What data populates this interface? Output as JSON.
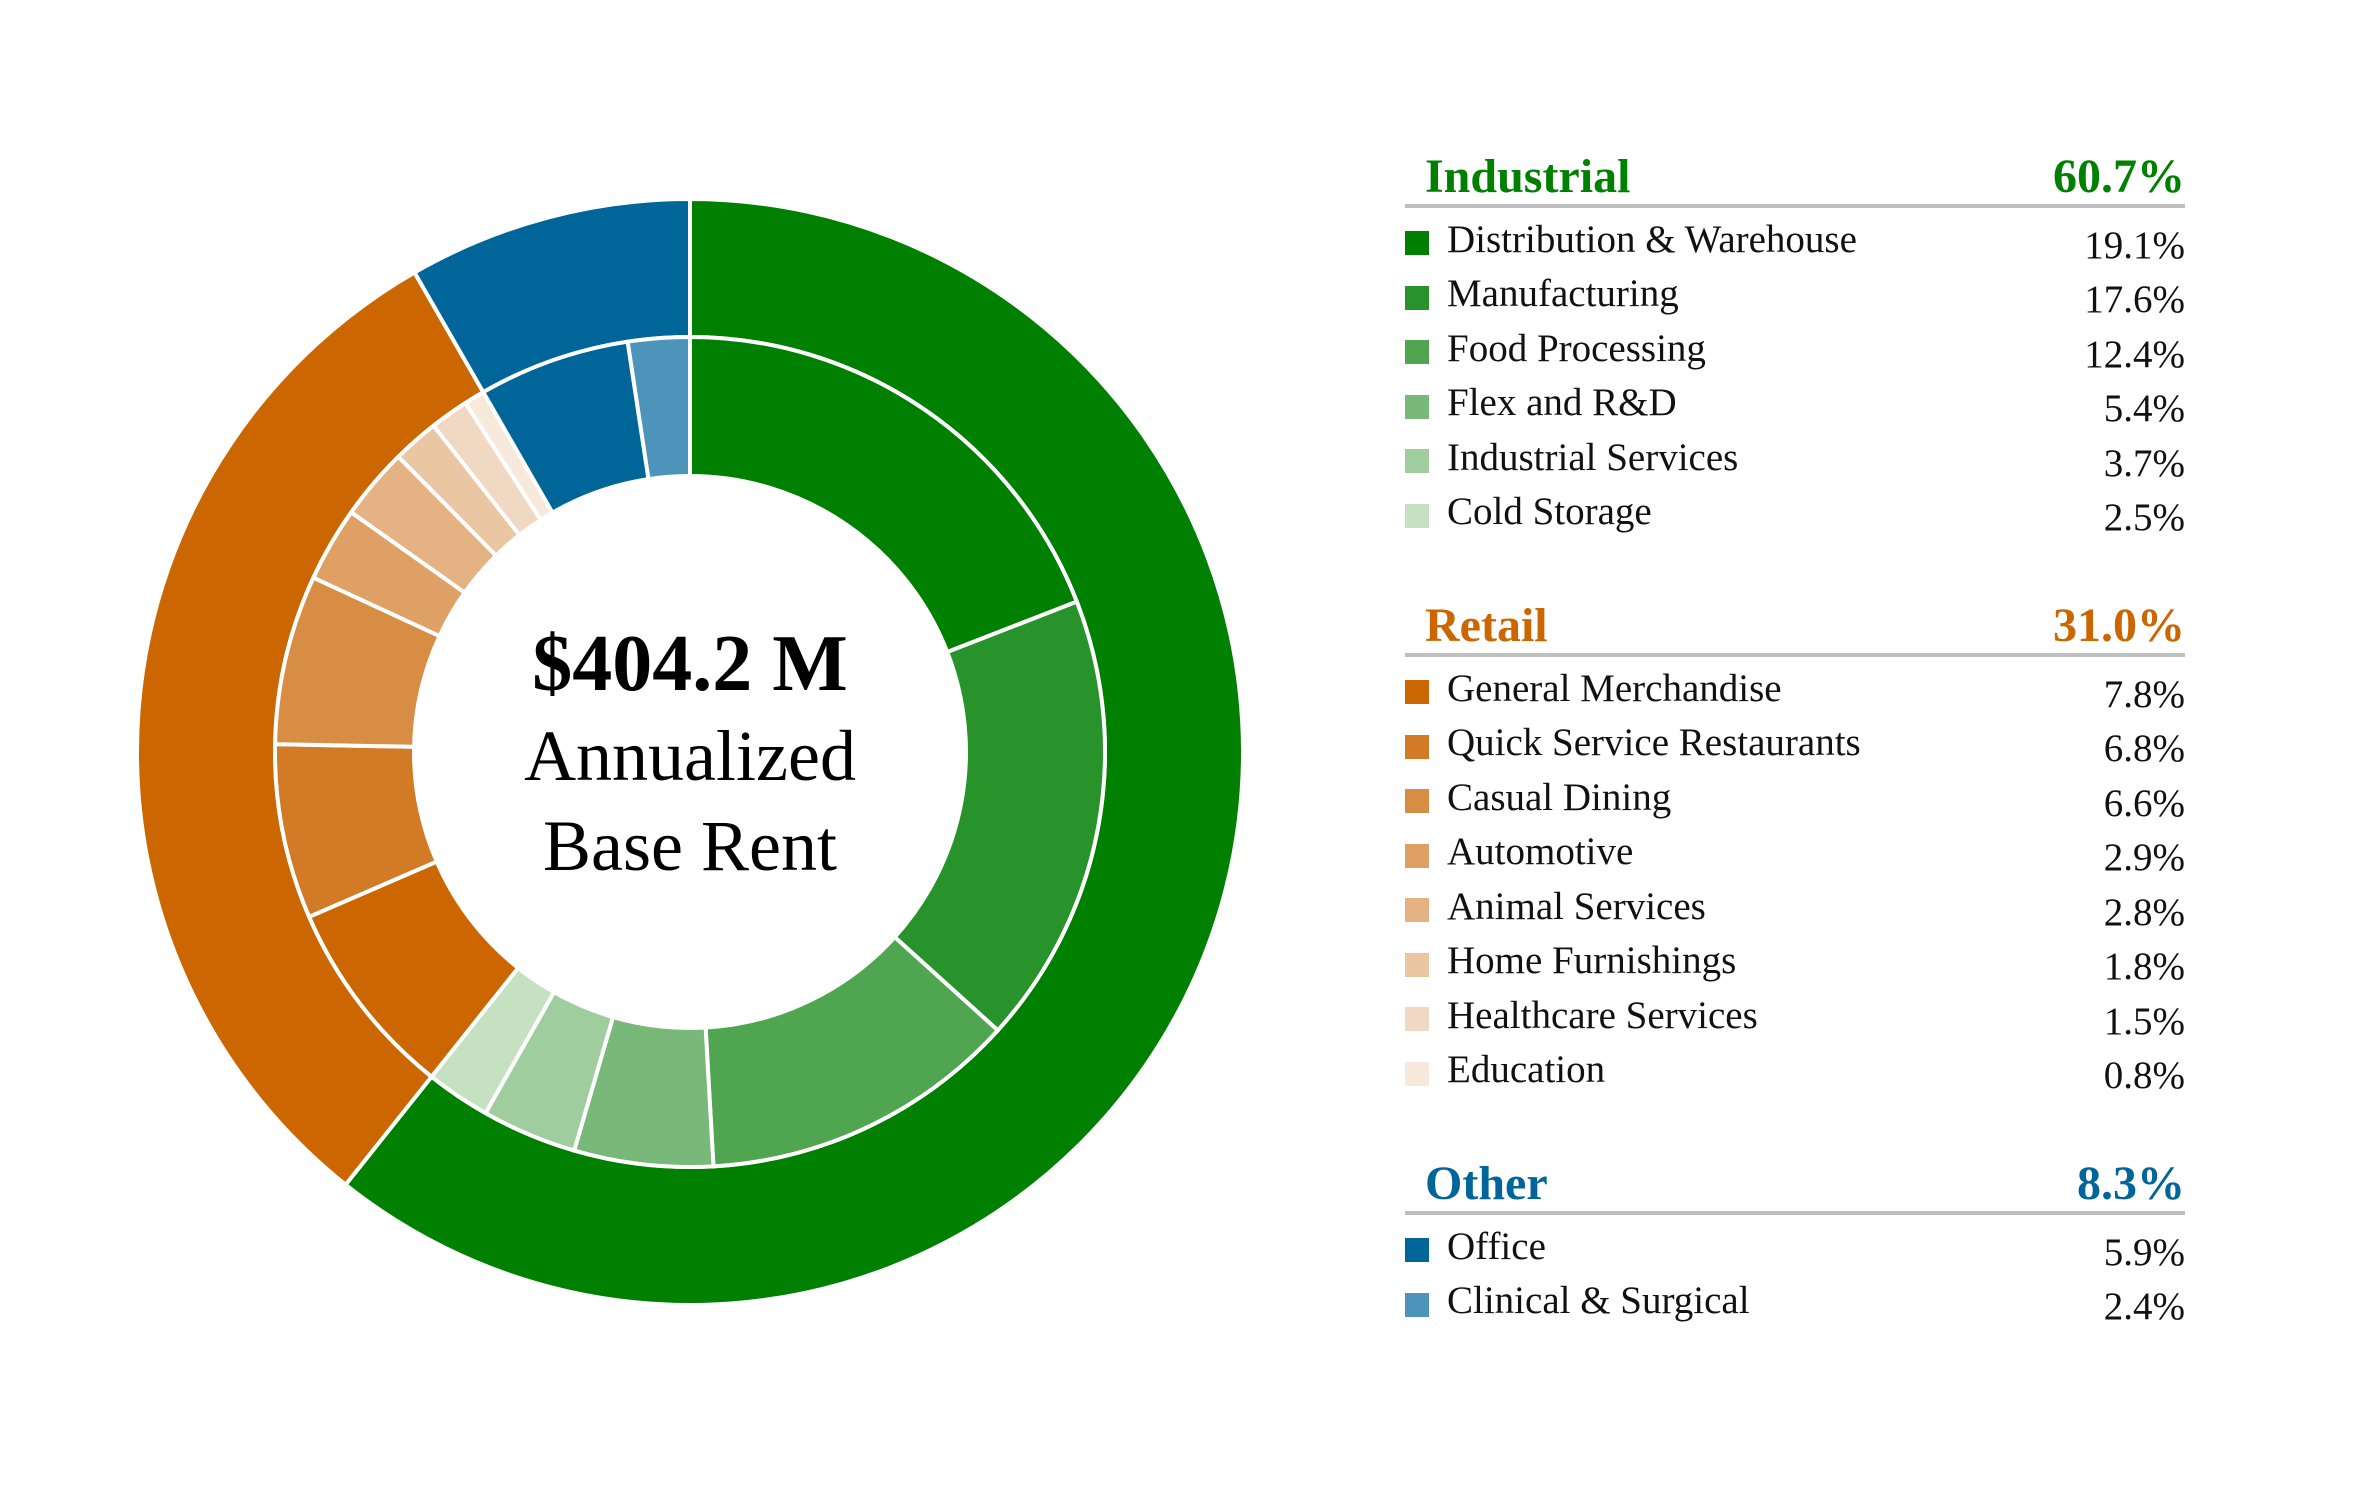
{
  "chart_data": {
    "type": "pie",
    "subtype": "nested-donut",
    "center": {
      "value": "$404.2 M",
      "line1": "Annualized",
      "line2": "Base Rent"
    },
    "outer_ring": [
      {
        "name": "Industrial",
        "value": 60.7,
        "display": "60.7%",
        "color": "#008000"
      },
      {
        "name": "Retail",
        "value": 31.0,
        "display": "31.0%",
        "color": "#CC6600"
      },
      {
        "name": "Other",
        "value": 8.3,
        "display": "8.3%",
        "color": "#006699"
      }
    ],
    "groups": [
      {
        "name": "Industrial",
        "total": "60.7%",
        "color": "#008000",
        "items": [
          {
            "name": "Distribution & Warehouse",
            "value": 19.1,
            "display": "19.1%",
            "color": "#008000"
          },
          {
            "name": "Manufacturing",
            "value": 17.6,
            "display": "17.6%",
            "color": "#28922B"
          },
          {
            "name": "Food Processing",
            "value": 12.4,
            "display": "12.4%",
            "color": "#50A550"
          },
          {
            "name": "Flex and R&D",
            "value": 5.4,
            "display": "5.4%",
            "color": "#78B878"
          },
          {
            "name": "Industrial Services",
            "value": 3.7,
            "display": "3.7%",
            "color": "#9FCD9D"
          },
          {
            "name": "Cold Storage",
            "value": 2.5,
            "display": "2.5%",
            "color": "#C5E1C2"
          }
        ]
      },
      {
        "name": "Retail",
        "total": "31.0%",
        "color": "#CC6600",
        "items": [
          {
            "name": "General Merchandise",
            "value": 7.8,
            "display": "7.8%",
            "color": "#CC6600"
          },
          {
            "name": "Quick Service Restaurants",
            "value": 6.8,
            "display": "6.8%",
            "color": "#D27A25"
          },
          {
            "name": "Casual Dining",
            "value": 6.6,
            "display": "6.6%",
            "color": "#D88D44"
          },
          {
            "name": "Automotive",
            "value": 2.9,
            "display": "2.9%",
            "color": "#DEA064"
          },
          {
            "name": "Animal Services",
            "value": 2.8,
            "display": "2.8%",
            "color": "#E4B283"
          },
          {
            "name": "Home Furnishings",
            "value": 1.8,
            "display": "1.8%",
            "color": "#EBC6A3"
          },
          {
            "name": "Healthcare Services",
            "value": 1.5,
            "display": "1.5%",
            "color": "#F1D8C2"
          },
          {
            "name": "Education",
            "value": 0.8,
            "display": "0.8%",
            "color": "#F7EADC"
          }
        ]
      },
      {
        "name": "Other",
        "total": "8.3%",
        "color": "#006699",
        "items": [
          {
            "name": "Office",
            "value": 5.9,
            "display": "5.9%",
            "color": "#006699"
          },
          {
            "name": "Clinical & Surgical",
            "value": 2.4,
            "display": "2.4%",
            "color": "#4D94BA"
          }
        ]
      }
    ]
  }
}
